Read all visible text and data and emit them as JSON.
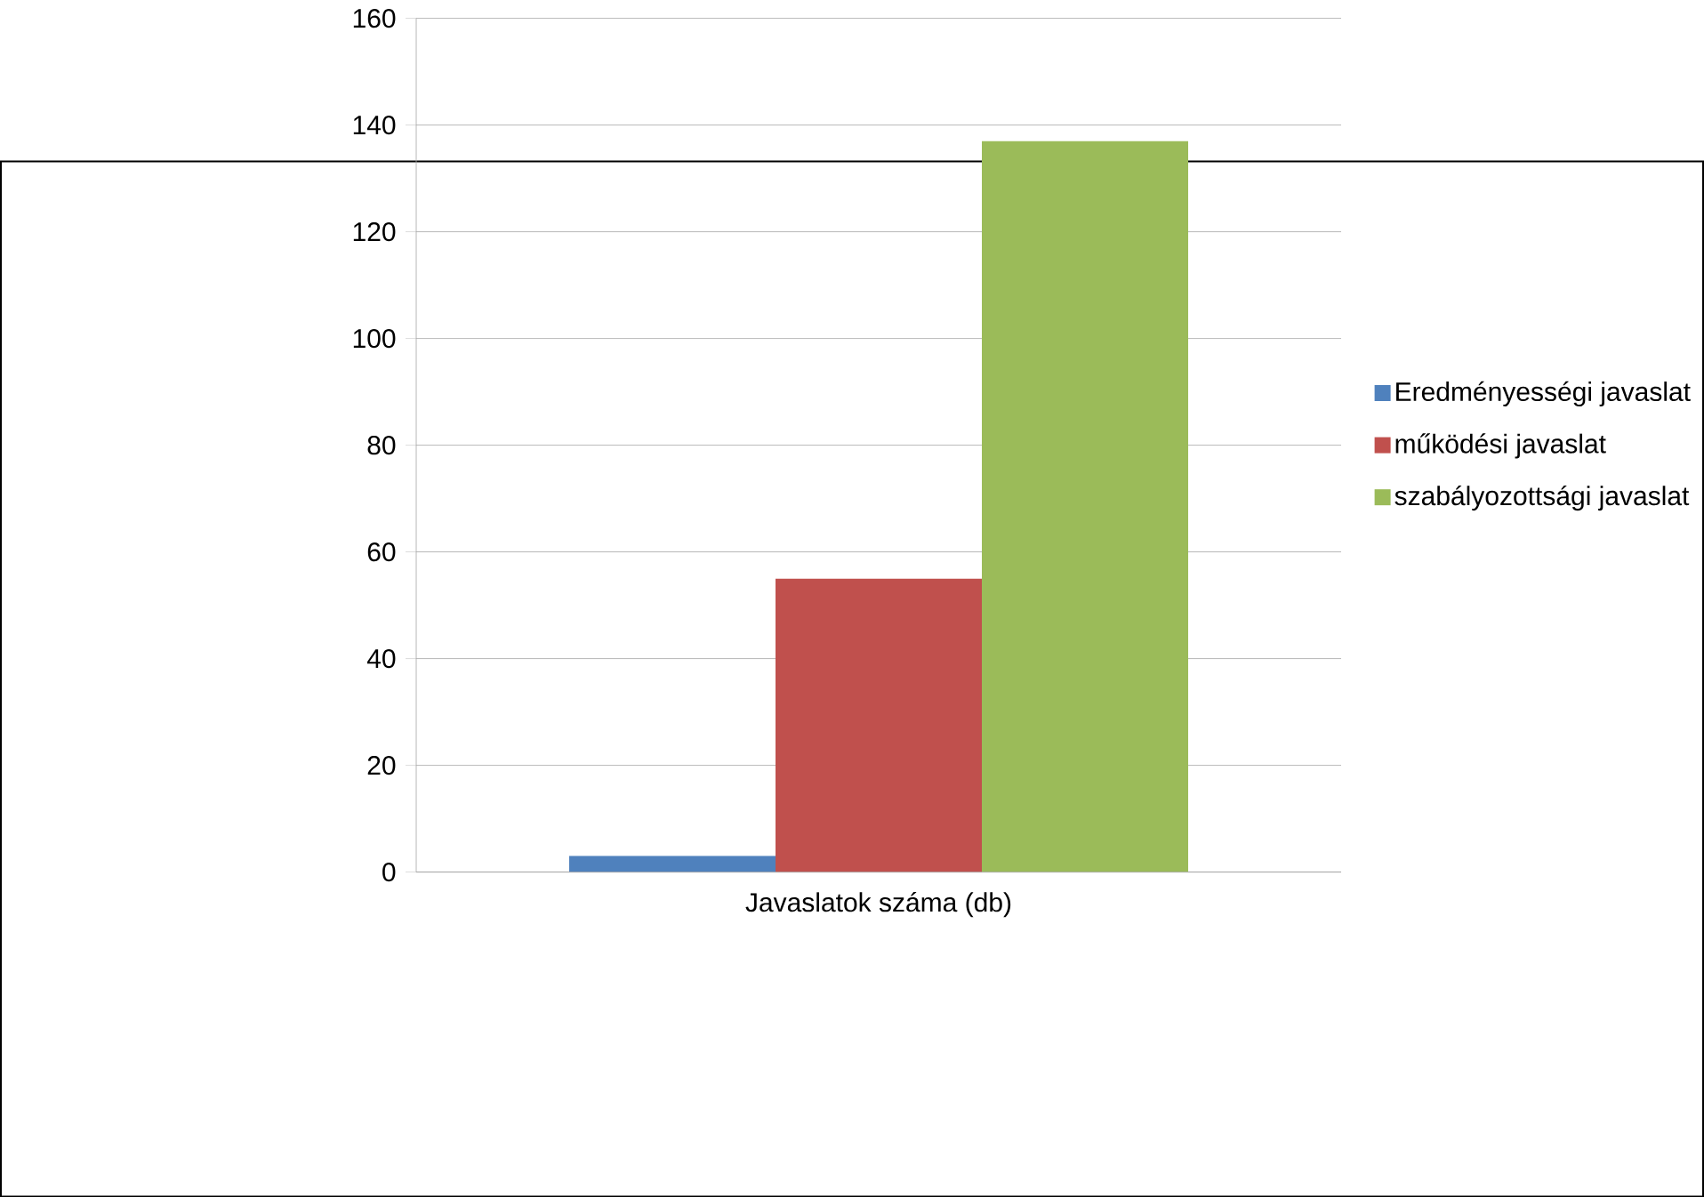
{
  "chart_data": {
    "type": "bar",
    "categories": [
      "Javaslatok száma (db)"
    ],
    "series": [
      {
        "name": "Eredményességi javaslat",
        "color": "#4f81bd",
        "values": [
          3
        ]
      },
      {
        "name": "működési javaslat",
        "color": "#c0504d",
        "values": [
          55
        ]
      },
      {
        "name": "szabályozottsági javaslat",
        "color": "#9bbb59",
        "values": [
          137
        ]
      }
    ],
    "ylim": [
      0,
      160
    ],
    "yticks": [
      0,
      20,
      40,
      60,
      80,
      100,
      120,
      140,
      160
    ],
    "grid": "y",
    "legend": "right"
  }
}
